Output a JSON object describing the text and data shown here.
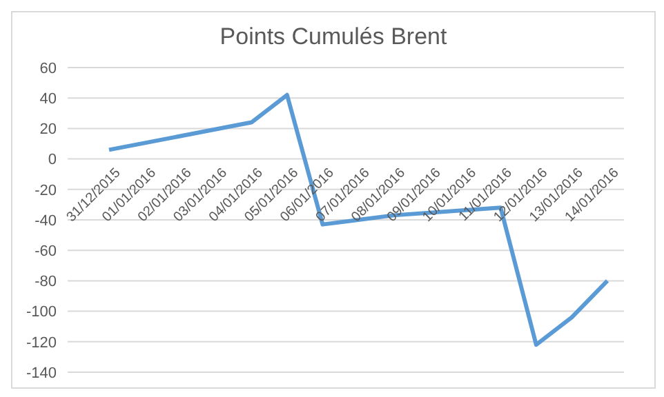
{
  "chart_data": {
    "type": "line",
    "title": "Points Cumulés Brent",
    "categories": [
      "31/12/2015",
      "01/01/2016",
      "02/01/2016",
      "03/01/2016",
      "04/01/2016",
      "05/01/2016",
      "06/01/2016",
      "07/01/2016",
      "08/01/2016",
      "09/01/2016",
      "10/01/2016",
      "11/01/2016",
      "12/01/2016",
      "13/01/2016",
      "14/01/2016"
    ],
    "series": [
      {
        "color": "#5b9bd5",
        "values": [
          6,
          null,
          null,
          null,
          24,
          42,
          -43,
          -40,
          -37,
          null,
          null,
          -32,
          -122,
          -104,
          -80
        ]
      }
    ],
    "ylim": [
      -140,
      60
    ],
    "yticks": [
      -140,
      -120,
      -100,
      -80,
      -60,
      -40,
      -20,
      0,
      20,
      40,
      60
    ],
    "grid": "y"
  }
}
